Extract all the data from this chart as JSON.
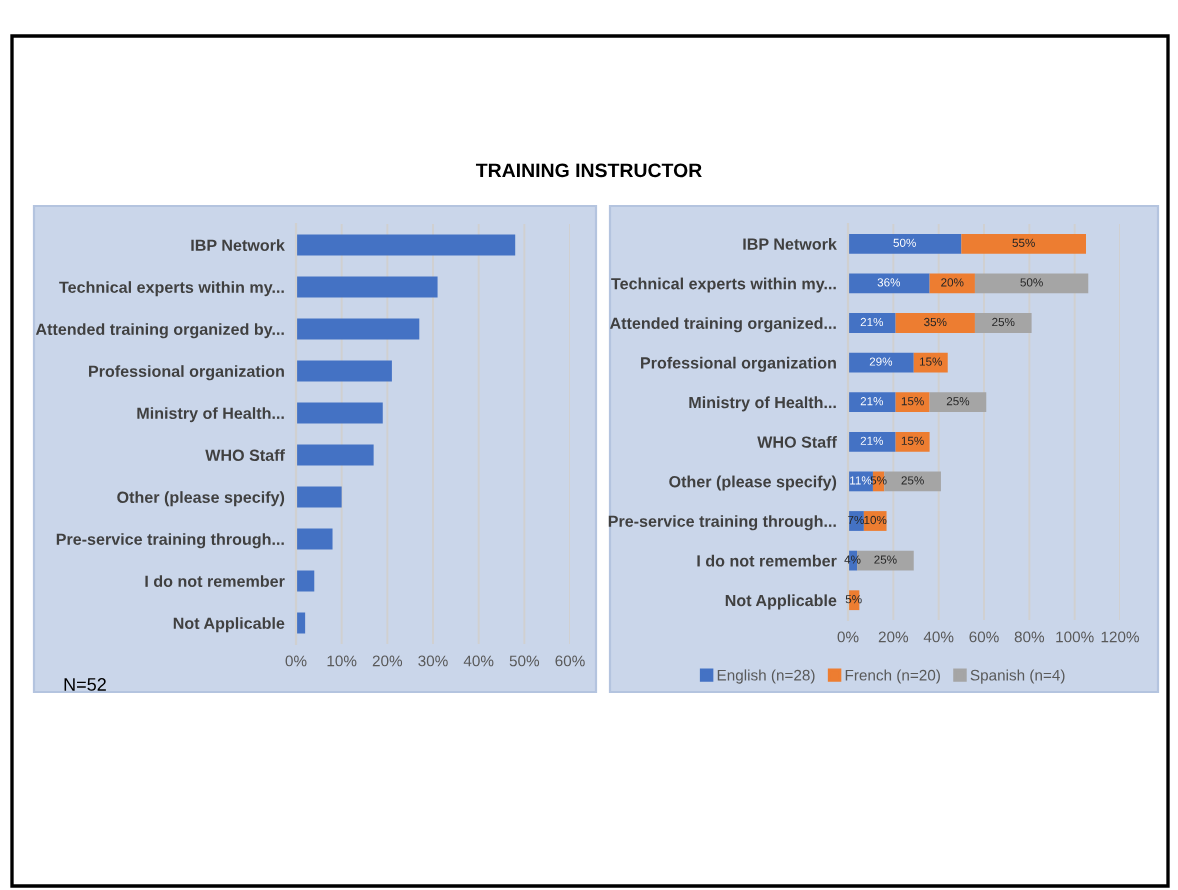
{
  "chart_data": [
    {
      "type": "bar",
      "title": "TRAINING INSTRUCTOR",
      "orientation": "horizontal",
      "categories": [
        "IBP Network",
        "Technical experts within my...",
        "Attended training organized by...",
        "Professional organization",
        "Ministry of Health...",
        "WHO Staff",
        "Other (please specify)",
        "Pre-service training through...",
        "I do not remember",
        "Not Applicable"
      ],
      "values": [
        48,
        31,
        27,
        21,
        19,
        17,
        10,
        8,
        4,
        2
      ],
      "color": "#4472c4",
      "xlim": [
        0,
        60
      ],
      "xticks": [
        {
          "value": 0,
          "label": "0%"
        },
        {
          "value": 10,
          "label": "10%"
        },
        {
          "value": 20,
          "label": "20%"
        },
        {
          "value": 30,
          "label": "30%"
        },
        {
          "value": 40,
          "label": "40%"
        },
        {
          "value": 50,
          "label": "50%"
        },
        {
          "value": 60,
          "label": "60%"
        }
      ],
      "grid": "x",
      "legend": false,
      "annotations": [
        "N=52"
      ]
    },
    {
      "type": "bar",
      "orientation": "horizontal",
      "stacked": true,
      "categories": [
        "IBP Network",
        "Technical experts within my...",
        "Attended training organized...",
        "Professional organization",
        "Ministry of Health...",
        "WHO Staff",
        "Other (please specify)",
        "Pre-service training through...",
        "I do not remember",
        "Not Applicable"
      ],
      "series": [
        {
          "name": "English (n=28)",
          "color": "#4472c4",
          "values": [
            50,
            36,
            21,
            29,
            21,
            21,
            11,
            7,
            4,
            null
          ],
          "value_labels": [
            "50%",
            "36%",
            "21%",
            "29%",
            "21%",
            "21%",
            "11%",
            "7%",
            "4%",
            null
          ]
        },
        {
          "name": "French (n=20)",
          "color": "#ed7d31",
          "values": [
            55,
            20,
            35,
            15,
            15,
            15,
            5,
            10,
            null,
            5
          ],
          "value_labels": [
            "55%",
            "20%",
            "35%",
            "15%",
            "15%",
            "15%",
            "5%",
            "10%",
            null,
            "5%"
          ]
        },
        {
          "name": "Spanish (n=4)",
          "color": "#a5a5a5",
          "values": [
            null,
            50,
            25,
            null,
            25,
            null,
            25,
            null,
            25,
            null
          ],
          "value_labels": [
            null,
            "50%",
            "25%",
            null,
            "25%",
            null,
            "25%",
            null,
            "25%",
            null
          ]
        }
      ],
      "xlim": [
        0,
        120
      ],
      "xticks": [
        {
          "value": 0,
          "label": "0%"
        },
        {
          "value": 20,
          "label": "20%"
        },
        {
          "value": 40,
          "label": "40%"
        },
        {
          "value": 60,
          "label": "60%"
        },
        {
          "value": 80,
          "label": "80%"
        },
        {
          "value": 100,
          "label": "100%"
        },
        {
          "value": 120,
          "label": "120%"
        }
      ],
      "grid": "x",
      "legend": "bottom"
    }
  ]
}
